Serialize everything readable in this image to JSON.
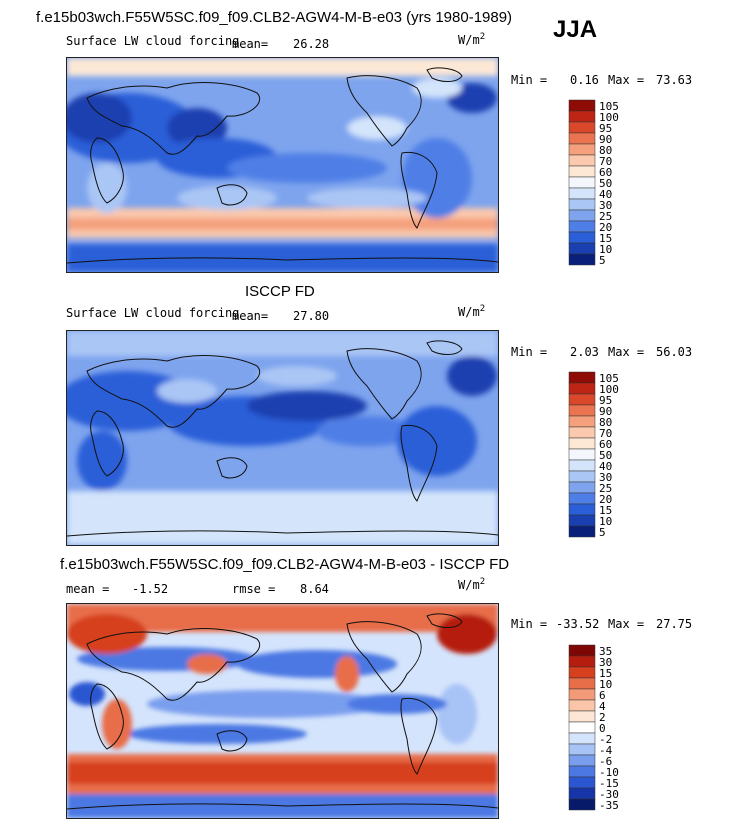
{
  "season": "JJA",
  "colors": {
    "levels_blue_red": [
      "#0a1f7a",
      "#1a3fb0",
      "#2a5fd8",
      "#4f7fe6",
      "#7ea4ee",
      "#aac6f5",
      "#d3e4fb",
      "#f3f7fd",
      "#fde8d6",
      "#fbc9ad",
      "#f4a07d",
      "#ea744f",
      "#d9482b",
      "#bf2515",
      "#8e0c05"
    ],
    "diff": [
      "#071a6a",
      "#1535a8",
      "#2a56d2",
      "#4c78e3",
      "#7a9eee",
      "#a8c3f6",
      "#d4e4fc",
      "#ffffff",
      "#fde6d6",
      "#fbc5aa",
      "#f39b78",
      "#e86d49",
      "#d6401f",
      "#b51d0e",
      "#7e0705"
    ]
  },
  "panels": [
    {
      "title": "f.e15b03wch.F55W5SC.f09_f09.CLB2-AGW4-M-B-e03 (yrs 1980-1989)",
      "subtitle": "Surface LW cloud forcing",
      "mean_label": "mean=",
      "mean": "26.28",
      "unit": "W/m",
      "unit_sup": "2",
      "min_label": "Min =",
      "min": "0.16",
      "max_label": "Max =",
      "max": "73.63",
      "colorbar": [
        "105",
        "100",
        "95",
        "90",
        "80",
        "70",
        "60",
        "50",
        "40",
        "30",
        "25",
        "20",
        "15",
        "10",
        "5"
      ]
    },
    {
      "title": "ISCCP FD",
      "subtitle": "Surface LW cloud forcing",
      "mean_label": "mean=",
      "mean": "27.80",
      "unit": "W/m",
      "unit_sup": "2",
      "min_label": "Min =",
      "min": "2.03",
      "max_label": "Max =",
      "max": "56.03",
      "colorbar": [
        "105",
        "100",
        "95",
        "90",
        "80",
        "70",
        "60",
        "50",
        "40",
        "30",
        "25",
        "20",
        "15",
        "10",
        "5"
      ]
    },
    {
      "title": "f.e15b03wch.F55W5SC.f09_f09.CLB2-AGW4-M-B-e03 - ISCCP FD",
      "mean_label": "mean =",
      "mean": "-1.52",
      "rmse_label": "rmse =",
      "rmse": "8.64",
      "unit": "W/m",
      "unit_sup": "2",
      "min_label": "Min =",
      "min": "-33.52",
      "max_label": "Max =",
      "max": "27.75",
      "colorbar": [
        "35",
        "30",
        "15",
        "10",
        "6",
        "4",
        "2",
        "0",
        "-2",
        "-4",
        "-6",
        "-10",
        "-15",
        "-30",
        "-35"
      ]
    }
  ],
  "chart_data": [
    {
      "type": "heatmap",
      "title": "f.e15b03wch.F55W5SC.f09_f09.CLB2-AGW4-M-B-e03 (yrs 1980-1989)",
      "subtitle": "Surface LW cloud forcing",
      "mean": 26.28,
      "min": 0.16,
      "max": 73.63,
      "levels": [
        5,
        10,
        15,
        20,
        25,
        30,
        40,
        50,
        60,
        70,
        80,
        90,
        95,
        100,
        105
      ]
    },
    {
      "type": "heatmap",
      "title": "ISCCP FD",
      "subtitle": "Surface LW cloud forcing",
      "mean": 27.8,
      "min": 2.03,
      "max": 56.03,
      "levels": [
        5,
        10,
        15,
        20,
        25,
        30,
        40,
        50,
        60,
        70,
        80,
        90,
        95,
        100,
        105
      ]
    },
    {
      "type": "heatmap",
      "title": "f.e15b03wch.F55W5SC.f09_f09.CLB2-AGW4-M-B-e03 - ISCCP FD",
      "mean": -1.52,
      "rmse": 8.64,
      "min": -33.52,
      "max": 27.75,
      "levels": [
        -35,
        -30,
        -15,
        -10,
        -6,
        -4,
        -2,
        0,
        2,
        4,
        6,
        10,
        15,
        30,
        35
      ]
    }
  ]
}
